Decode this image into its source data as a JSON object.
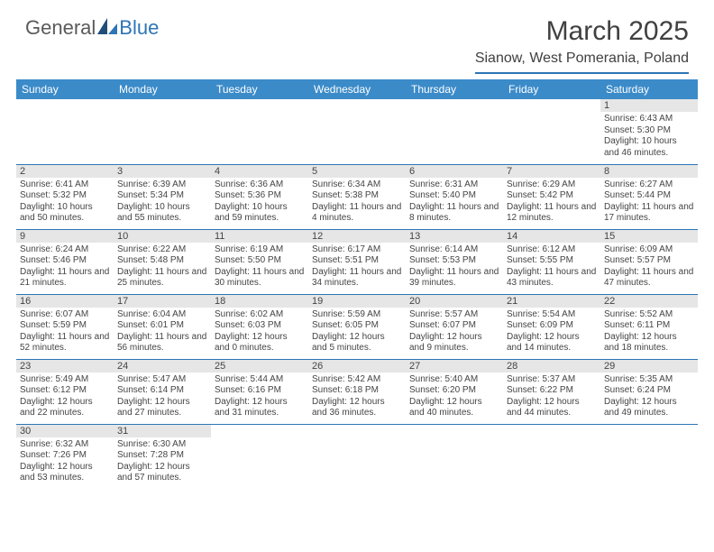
{
  "logo": {
    "general": "General",
    "blue": "Blue"
  },
  "title": "March 2025",
  "location": "Sianow, West Pomerania, Poland",
  "weekdays": [
    "Sunday",
    "Monday",
    "Tuesday",
    "Wednesday",
    "Thursday",
    "Friday",
    "Saturday"
  ],
  "colors": {
    "header_bar": "#3b8bc9",
    "accent": "#2e75b6",
    "daynum_bg": "#e6e6e6",
    "text": "#404040"
  },
  "grid": [
    [
      null,
      null,
      null,
      null,
      null,
      null,
      {
        "n": "1",
        "sr": "Sunrise: 6:43 AM",
        "ss": "Sunset: 5:30 PM",
        "dl": "Daylight: 10 hours and 46 minutes."
      }
    ],
    [
      {
        "n": "2",
        "sr": "Sunrise: 6:41 AM",
        "ss": "Sunset: 5:32 PM",
        "dl": "Daylight: 10 hours and 50 minutes."
      },
      {
        "n": "3",
        "sr": "Sunrise: 6:39 AM",
        "ss": "Sunset: 5:34 PM",
        "dl": "Daylight: 10 hours and 55 minutes."
      },
      {
        "n": "4",
        "sr": "Sunrise: 6:36 AM",
        "ss": "Sunset: 5:36 PM",
        "dl": "Daylight: 10 hours and 59 minutes."
      },
      {
        "n": "5",
        "sr": "Sunrise: 6:34 AM",
        "ss": "Sunset: 5:38 PM",
        "dl": "Daylight: 11 hours and 4 minutes."
      },
      {
        "n": "6",
        "sr": "Sunrise: 6:31 AM",
        "ss": "Sunset: 5:40 PM",
        "dl": "Daylight: 11 hours and 8 minutes."
      },
      {
        "n": "7",
        "sr": "Sunrise: 6:29 AM",
        "ss": "Sunset: 5:42 PM",
        "dl": "Daylight: 11 hours and 12 minutes."
      },
      {
        "n": "8",
        "sr": "Sunrise: 6:27 AM",
        "ss": "Sunset: 5:44 PM",
        "dl": "Daylight: 11 hours and 17 minutes."
      }
    ],
    [
      {
        "n": "9",
        "sr": "Sunrise: 6:24 AM",
        "ss": "Sunset: 5:46 PM",
        "dl": "Daylight: 11 hours and 21 minutes."
      },
      {
        "n": "10",
        "sr": "Sunrise: 6:22 AM",
        "ss": "Sunset: 5:48 PM",
        "dl": "Daylight: 11 hours and 25 minutes."
      },
      {
        "n": "11",
        "sr": "Sunrise: 6:19 AM",
        "ss": "Sunset: 5:50 PM",
        "dl": "Daylight: 11 hours and 30 minutes."
      },
      {
        "n": "12",
        "sr": "Sunrise: 6:17 AM",
        "ss": "Sunset: 5:51 PM",
        "dl": "Daylight: 11 hours and 34 minutes."
      },
      {
        "n": "13",
        "sr": "Sunrise: 6:14 AM",
        "ss": "Sunset: 5:53 PM",
        "dl": "Daylight: 11 hours and 39 minutes."
      },
      {
        "n": "14",
        "sr": "Sunrise: 6:12 AM",
        "ss": "Sunset: 5:55 PM",
        "dl": "Daylight: 11 hours and 43 minutes."
      },
      {
        "n": "15",
        "sr": "Sunrise: 6:09 AM",
        "ss": "Sunset: 5:57 PM",
        "dl": "Daylight: 11 hours and 47 minutes."
      }
    ],
    [
      {
        "n": "16",
        "sr": "Sunrise: 6:07 AM",
        "ss": "Sunset: 5:59 PM",
        "dl": "Daylight: 11 hours and 52 minutes."
      },
      {
        "n": "17",
        "sr": "Sunrise: 6:04 AM",
        "ss": "Sunset: 6:01 PM",
        "dl": "Daylight: 11 hours and 56 minutes."
      },
      {
        "n": "18",
        "sr": "Sunrise: 6:02 AM",
        "ss": "Sunset: 6:03 PM",
        "dl": "Daylight: 12 hours and 0 minutes."
      },
      {
        "n": "19",
        "sr": "Sunrise: 5:59 AM",
        "ss": "Sunset: 6:05 PM",
        "dl": "Daylight: 12 hours and 5 minutes."
      },
      {
        "n": "20",
        "sr": "Sunrise: 5:57 AM",
        "ss": "Sunset: 6:07 PM",
        "dl": "Daylight: 12 hours and 9 minutes."
      },
      {
        "n": "21",
        "sr": "Sunrise: 5:54 AM",
        "ss": "Sunset: 6:09 PM",
        "dl": "Daylight: 12 hours and 14 minutes."
      },
      {
        "n": "22",
        "sr": "Sunrise: 5:52 AM",
        "ss": "Sunset: 6:11 PM",
        "dl": "Daylight: 12 hours and 18 minutes."
      }
    ],
    [
      {
        "n": "23",
        "sr": "Sunrise: 5:49 AM",
        "ss": "Sunset: 6:12 PM",
        "dl": "Daylight: 12 hours and 22 minutes."
      },
      {
        "n": "24",
        "sr": "Sunrise: 5:47 AM",
        "ss": "Sunset: 6:14 PM",
        "dl": "Daylight: 12 hours and 27 minutes."
      },
      {
        "n": "25",
        "sr": "Sunrise: 5:44 AM",
        "ss": "Sunset: 6:16 PM",
        "dl": "Daylight: 12 hours and 31 minutes."
      },
      {
        "n": "26",
        "sr": "Sunrise: 5:42 AM",
        "ss": "Sunset: 6:18 PM",
        "dl": "Daylight: 12 hours and 36 minutes."
      },
      {
        "n": "27",
        "sr": "Sunrise: 5:40 AM",
        "ss": "Sunset: 6:20 PM",
        "dl": "Daylight: 12 hours and 40 minutes."
      },
      {
        "n": "28",
        "sr": "Sunrise: 5:37 AM",
        "ss": "Sunset: 6:22 PM",
        "dl": "Daylight: 12 hours and 44 minutes."
      },
      {
        "n": "29",
        "sr": "Sunrise: 5:35 AM",
        "ss": "Sunset: 6:24 PM",
        "dl": "Daylight: 12 hours and 49 minutes."
      }
    ],
    [
      {
        "n": "30",
        "sr": "Sunrise: 6:32 AM",
        "ss": "Sunset: 7:26 PM",
        "dl": "Daylight: 12 hours and 53 minutes."
      },
      {
        "n": "31",
        "sr": "Sunrise: 6:30 AM",
        "ss": "Sunset: 7:28 PM",
        "dl": "Daylight: 12 hours and 57 minutes."
      },
      null,
      null,
      null,
      null,
      null
    ]
  ]
}
